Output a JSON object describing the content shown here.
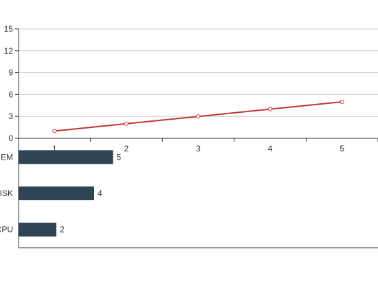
{
  "colors": {
    "line": "#c23531",
    "bar": "#2f4554",
    "grid": "#cccccc",
    "axis": "#333333",
    "text": "#333333",
    "background": "#ffffff"
  },
  "chart_data": [
    {
      "type": "line",
      "x": [
        1,
        2,
        3,
        4,
        5
      ],
      "values": [
        1,
        2,
        3,
        4,
        5
      ],
      "ylim": [
        0,
        15
      ],
      "yticks": [
        0,
        3,
        6,
        9,
        12,
        15
      ],
      "xtick_labels": [
        "1",
        "2",
        "3",
        "4",
        "5"
      ],
      "grid": true,
      "marker": "empty-circle"
    },
    {
      "type": "bar",
      "orientation": "horizontal",
      "categories": [
        "CPU",
        "DISK",
        "MEM"
      ],
      "values": [
        2,
        4,
        5
      ],
      "value_labels": [
        "2",
        "4",
        "5"
      ],
      "grid": false
    }
  ]
}
